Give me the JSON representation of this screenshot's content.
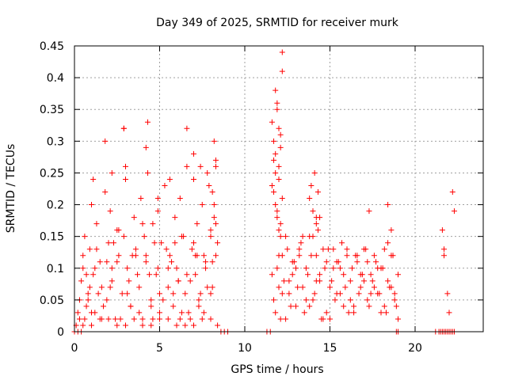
{
  "chart_data": {
    "type": "scatter",
    "title": "Day 349 of 2025, SRMTID for receiver murk",
    "xlabel": "GPS time / hours",
    "ylabel": "SRMTID / TECUs",
    "xlim": [
      0,
      24
    ],
    "ylim": [
      0,
      0.45
    ],
    "xticks": [
      0,
      5,
      10,
      15,
      20
    ],
    "yticks": [
      0,
      0.05,
      0.1,
      0.15,
      0.2,
      0.25,
      0.3,
      0.35,
      0.4,
      0.45
    ],
    "xtick_labels": [
      "0",
      "5",
      "10",
      "15",
      "20"
    ],
    "ytick_labels": [
      "0",
      "0.05",
      "0.1",
      "0.15",
      "0.2",
      "0.25",
      "0.3",
      "0.35",
      "0.4",
      "0.45"
    ],
    "grid": true,
    "marker": "+",
    "color": "#ff0000",
    "series": [
      {
        "x": [
          0.1,
          0.2,
          0.3,
          0.4,
          0.5,
          0.3,
          0.6,
          0.8,
          0.5,
          0.7,
          0.9,
          1.0,
          1.1,
          1.2,
          1.3,
          1.5,
          1.6,
          1.8,
          1.9,
          2.0,
          2.1,
          2.2,
          2.4,
          2.5,
          2.6,
          2.8,
          2.9,
          3.0,
          3.1,
          3.3,
          3.5,
          3.6,
          3.8,
          3.9,
          4.0,
          4.1,
          4.2,
          4.3,
          4.5,
          4.6,
          4.8,
          4.9,
          5.0,
          5.1,
          5.3,
          5.5,
          5.6,
          5.8,
          5.9,
          6.0,
          6.1,
          6.2,
          6.3,
          6.5,
          6.6,
          6.8,
          6.9,
          7.0,
          7.1,
          7.2,
          7.3,
          7.5,
          7.6,
          7.8,
          7.9,
          8.0,
          8.1,
          8.2,
          8.3,
          8.4,
          0.6,
          0.9,
          1.3,
          1.7,
          2.2,
          2.6,
          3.1,
          3.4,
          3.8,
          4.4,
          4.7,
          5.2,
          5.7,
          6.1,
          6.4,
          6.7,
          7.1,
          7.4,
          7.7,
          8.0,
          8.2,
          0.7,
          1.0,
          1.4,
          1.9,
          2.3,
          2.7,
          3.2,
          3.6,
          4.0,
          4.5,
          4.9,
          5.4,
          5.8,
          6.2,
          6.6,
          7.0,
          7.3,
          7.7,
          8.1,
          8.3,
          0.8,
          1.2,
          1.6,
          2.1,
          2.5,
          2.9,
          3.3,
          3.7,
          4.2,
          4.6,
          5.0,
          5.5,
          5.9,
          6.3,
          6.8,
          7.2,
          7.6,
          8.0,
          8.3,
          1.8,
          2.9,
          3.0,
          4.2,
          4.3,
          6.6,
          7.0,
          7.4,
          8.2,
          8.3,
          1.1,
          2.2,
          4.9,
          5.6,
          7.8,
          8.1,
          0.5,
          1.5,
          2.5,
          3.5,
          4.5,
          5.5,
          6.5,
          7.5,
          8.4,
          1.0,
          2.0,
          3.0,
          4.0,
          5.0,
          6.0,
          7.0,
          8.0,
          0.0,
          0.2,
          0.4,
          8.6,
          8.8,
          9.0,
          11.6,
          11.7,
          11.8,
          11.9,
          12.0,
          12.1,
          11.7,
          11.8,
          11.9,
          12.0,
          12.1,
          12.2,
          11.6,
          11.8,
          12.0,
          12.2,
          11.7,
          11.9,
          12.1,
          11.8,
          12.0,
          12.2,
          11.9,
          12.1,
          11.6,
          11.8,
          12.0,
          12.2,
          12.4,
          12.6,
          12.8,
          13.0,
          13.2,
          13.4,
          13.6,
          13.8,
          14.0,
          14.2,
          14.4,
          14.6,
          14.8,
          15.0,
          15.2,
          15.4,
          15.6,
          15.8,
          16.0,
          16.2,
          16.4,
          16.6,
          16.8,
          17.0,
          17.2,
          17.4,
          17.6,
          17.8,
          18.0,
          18.2,
          18.4,
          18.6,
          18.8,
          19.0,
          11.7,
          11.9,
          12.1,
          12.3,
          12.5,
          12.7,
          12.9,
          13.1,
          13.3,
          13.5,
          13.7,
          13.9,
          14.1,
          14.3,
          14.5,
          14.7,
          14.9,
          15.1,
          15.3,
          15.5,
          15.7,
          15.9,
          16.1,
          16.3,
          16.5,
          16.7,
          16.9,
          17.1,
          17.3,
          17.5,
          17.7,
          17.9,
          18.1,
          18.3,
          18.5,
          18.7,
          18.9,
          12.0,
          12.4,
          12.8,
          13.2,
          13.6,
          14.0,
          14.4,
          14.8,
          15.2,
          15.6,
          16.0,
          16.4,
          16.8,
          17.2,
          17.6,
          18.0,
          18.4,
          18.8,
          12.2,
          12.6,
          13.0,
          13.4,
          13.8,
          14.2,
          14.6,
          15.0,
          15.4,
          15.8,
          16.2,
          16.6,
          17.0,
          17.4,
          17.8,
          18.2,
          18.6,
          19.0,
          13.8,
          14.0,
          14.1,
          14.2,
          14.3,
          14.4,
          17.3,
          18.4,
          18.6,
          13.9,
          14.2,
          11.3,
          11.5,
          18.9,
          19.0,
          21.2,
          21.4,
          21.5,
          21.6,
          21.7,
          21.8,
          21.9,
          22.0,
          22.1,
          22.2,
          22.3,
          21.6,
          21.7,
          21.9,
          22.0,
          22.3,
          21.7,
          22.2
        ],
        "y": [
          0.01,
          0.03,
          0.05,
          0.08,
          0.12,
          0.02,
          0.15,
          0.06,
          0.1,
          0.04,
          0.13,
          0.2,
          0.09,
          0.03,
          0.17,
          0.11,
          0.07,
          0.22,
          0.05,
          0.14,
          0.19,
          0.08,
          0.02,
          0.16,
          0.12,
          0.06,
          0.32,
          0.24,
          0.1,
          0.04,
          0.18,
          0.13,
          0.07,
          0.21,
          0.02,
          0.15,
          0.11,
          0.25,
          0.05,
          0.17,
          0.09,
          0.19,
          0.03,
          0.14,
          0.23,
          0.07,
          0.12,
          0.04,
          0.18,
          0.1,
          0.08,
          0.21,
          0.15,
          0.06,
          0.26,
          0.02,
          0.13,
          0.24,
          0.09,
          0.17,
          0.05,
          0.2,
          0.12,
          0.07,
          0.23,
          0.15,
          0.11,
          0.18,
          0.26,
          0.14,
          0.02,
          0.07,
          0.13,
          0.04,
          0.1,
          0.16,
          0.06,
          0.12,
          0.03,
          0.09,
          0.14,
          0.05,
          0.11,
          0.08,
          0.15,
          0.03,
          0.12,
          0.06,
          0.1,
          0.16,
          0.2,
          0.09,
          0.03,
          0.06,
          0.11,
          0.14,
          0.02,
          0.08,
          0.12,
          0.17,
          0.04,
          0.1,
          0.13,
          0.06,
          0.02,
          0.09,
          0.14,
          0.04,
          0.11,
          0.07,
          0.17,
          0.05,
          0.1,
          0.02,
          0.07,
          0.11,
          0.15,
          0.04,
          0.09,
          0.12,
          0.02,
          0.06,
          0.1,
          0.14,
          0.03,
          0.08,
          0.12,
          0.03,
          0.06,
          0.12,
          0.3,
          0.32,
          0.26,
          0.29,
          0.33,
          0.32,
          0.28,
          0.26,
          0.3,
          0.27,
          0.24,
          0.25,
          0.21,
          0.24,
          0.25,
          0.22,
          0.01,
          0.02,
          0.01,
          0.02,
          0.01,
          0.02,
          0.01,
          0.02,
          0.01,
          0.01,
          0.02,
          0.01,
          0.01,
          0.02,
          0.01,
          0.01,
          0.02,
          0.0,
          0.0,
          0.0,
          0.0,
          0.0,
          0.0,
          0.33,
          0.3,
          0.28,
          0.36,
          0.32,
          0.31,
          0.27,
          0.25,
          0.35,
          0.26,
          0.29,
          0.44,
          0.23,
          0.2,
          0.24,
          0.41,
          0.22,
          0.19,
          0.17,
          0.38,
          0.16,
          0.21,
          0.18,
          0.15,
          0.09,
          0.03,
          0.12,
          0.06,
          0.15,
          0.08,
          0.11,
          0.04,
          0.13,
          0.07,
          0.1,
          0.15,
          0.05,
          0.12,
          0.09,
          0.02,
          0.11,
          0.07,
          0.13,
          0.06,
          0.1,
          0.04,
          0.12,
          0.08,
          0.03,
          0.11,
          0.07,
          0.13,
          0.05,
          0.09,
          0.12,
          0.06,
          0.1,
          0.04,
          0.08,
          0.12,
          0.05,
          0.09,
          0.05,
          0.1,
          0.02,
          0.08,
          0.13,
          0.04,
          0.11,
          0.07,
          0.14,
          0.03,
          0.09,
          0.12,
          0.06,
          0.16,
          0.02,
          0.1,
          0.13,
          0.08,
          0.05,
          0.11,
          0.14,
          0.07,
          0.03,
          0.1,
          0.12,
          0.06,
          0.09,
          0.13,
          0.04,
          0.08,
          0.11,
          0.06,
          0.1,
          0.03,
          0.07,
          0.12,
          0.04,
          0.07,
          0.02,
          0.09,
          0.12,
          0.05,
          0.15,
          0.08,
          0.03,
          0.1,
          0.06,
          0.13,
          0.04,
          0.09,
          0.11,
          0.07,
          0.03,
          0.14,
          0.06,
          0.12,
          0.06,
          0.1,
          0.15,
          0.04,
          0.08,
          0.13,
          0.02,
          0.11,
          0.09,
          0.05,
          0.12,
          0.08,
          0.06,
          0.1,
          0.13,
          0.07,
          0.02,
          0.21,
          0.19,
          0.25,
          0.17,
          0.22,
          0.18,
          0.19,
          0.2,
          0.16,
          0.23,
          0.18,
          0.0,
          0.0,
          0.0,
          0.0,
          0.0,
          0.0,
          0.0,
          0.0,
          0.0,
          0.0,
          0.0,
          0.0,
          0.0,
          0.0,
          0.0,
          0.16,
          0.13,
          0.06,
          0.03,
          0.19,
          0.12,
          0.22
        ]
      }
    ]
  }
}
